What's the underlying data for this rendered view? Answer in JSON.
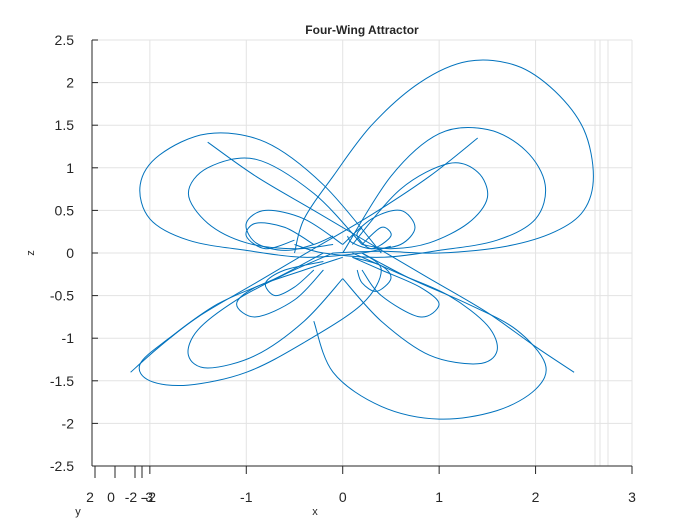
{
  "chart_data": {
    "type": "line",
    "title": "Four-Wing Attractor",
    "xlabel": "x",
    "ylabel": "y",
    "zlabel": "z",
    "x_ticks": [
      "-2",
      "-1",
      "0",
      "1",
      "2",
      "3"
    ],
    "y_ticks": [
      "2",
      "0",
      "-2",
      "-3"
    ],
    "z_ticks": [
      "2.5",
      "2",
      "1.5",
      "1",
      "0.5",
      "0",
      "-0.5",
      "-1",
      "-1.5",
      "-2",
      "-2.5"
    ],
    "xlim": [
      -2.6,
      3
    ],
    "zlim": [
      -2.5,
      2.5
    ],
    "grid": true,
    "series_color": "#0072BD",
    "series": [
      {
        "x": [
          -0.5,
          -0.4,
          -0.1,
          0.3,
          0.8,
          1.3,
          1.8,
          2.2,
          2.5,
          2.6,
          2.5,
          2.2,
          1.7,
          1.0,
          0.4,
          -0.1
        ],
        "z": [
          0.0,
          0.4,
          0.9,
          1.5,
          2.0,
          2.25,
          2.2,
          1.9,
          1.45,
          0.9,
          0.5,
          0.25,
          0.08,
          0.0,
          0.02,
          0.0
        ]
      },
      {
        "x": [
          0.0,
          0.5,
          1.0,
          1.5,
          1.9,
          2.1,
          2.0,
          1.6,
          1.0,
          0.4,
          -0.2,
          -0.5
        ],
        "z": [
          0.0,
          0.9,
          1.4,
          1.45,
          1.2,
          0.8,
          0.4,
          0.15,
          0.03,
          -0.05,
          0.0,
          0.1
        ]
      },
      {
        "x": [
          0.1,
          0.6,
          1.1,
          1.4,
          1.5,
          1.3,
          0.9,
          0.5,
          0.2
        ],
        "z": [
          0.1,
          0.75,
          1.05,
          0.95,
          0.65,
          0.35,
          0.12,
          0.05,
          0.1
        ]
      },
      {
        "x": [
          0.0,
          0.3,
          0.6,
          0.75,
          0.6,
          0.3,
          0.1,
          0.05
        ],
        "z": [
          0.1,
          0.4,
          0.5,
          0.3,
          0.1,
          0.05,
          0.12,
          0.2
        ]
      },
      {
        "x": [
          0.2,
          0.4,
          0.5,
          0.3,
          0.15,
          0.2
        ],
        "z": [
          0.1,
          0.3,
          0.2,
          0.05,
          0.2,
          0.3
        ]
      },
      {
        "x": [
          0.4,
          -0.2,
          -0.8,
          -1.4,
          -1.9,
          -2.1,
          -2.0,
          -1.6,
          -1.0,
          -0.4,
          0.2,
          0.5
        ],
        "z": [
          0.0,
          0.8,
          1.3,
          1.4,
          1.15,
          0.8,
          0.4,
          0.15,
          0.03,
          -0.05,
          0.0,
          0.08
        ]
      },
      {
        "x": [
          0.2,
          -0.3,
          -0.9,
          -1.4,
          -1.6,
          -1.4,
          -1.0,
          -0.5,
          -0.1
        ],
        "z": [
          0.1,
          0.7,
          1.1,
          1.0,
          0.7,
          0.35,
          0.12,
          0.05,
          0.1
        ]
      },
      {
        "x": [
          0.0,
          -0.4,
          -0.8,
          -1.0,
          -0.9,
          -0.6,
          -0.3,
          -0.1
        ],
        "z": [
          0.1,
          0.4,
          0.5,
          0.35,
          0.12,
          0.03,
          0.1,
          0.2
        ]
      },
      {
        "x": [
          -0.3,
          -0.6,
          -0.9,
          -1.0,
          -0.8,
          -0.5
        ],
        "z": [
          0.1,
          0.3,
          0.35,
          0.2,
          0.05,
          0.15
        ]
      },
      {
        "x": [
          -0.2,
          -0.7,
          -1.3,
          -1.8,
          -2.1,
          -2.0,
          -1.6,
          -1.0,
          -0.4,
          0.2,
          0.4,
          0.2
        ],
        "z": [
          0.0,
          -0.3,
          -0.6,
          -1.0,
          -1.3,
          -1.5,
          -1.55,
          -1.4,
          -1.05,
          -0.6,
          -0.2,
          0.0
        ]
      },
      {
        "x": [
          -0.1,
          -0.6,
          -1.1,
          -1.5,
          -1.6,
          -1.4,
          -0.9,
          -0.4,
          0.0
        ],
        "z": [
          0.0,
          -0.25,
          -0.55,
          -0.9,
          -1.2,
          -1.35,
          -1.2,
          -0.8,
          -0.3
        ]
      },
      {
        "x": [
          0.0,
          -0.4,
          -0.9,
          -1.1,
          -0.9,
          -0.5,
          -0.2
        ],
        "z": [
          -0.05,
          -0.2,
          -0.4,
          -0.6,
          -0.75,
          -0.55,
          -0.2
        ]
      },
      {
        "x": [
          -0.2,
          -0.6,
          -0.8,
          -0.7,
          -0.5,
          -0.3
        ],
        "z": [
          -0.1,
          -0.2,
          -0.35,
          -0.5,
          -0.4,
          -0.2
        ]
      },
      {
        "x": [
          0.2,
          0.7,
          1.3,
          1.8,
          2.1,
          2.0,
          1.6,
          1.0,
          0.4,
          -0.1,
          -0.3
        ],
        "z": [
          0.0,
          -0.3,
          -0.6,
          -0.9,
          -1.3,
          -1.6,
          -1.85,
          -1.95,
          -1.8,
          -1.4,
          -0.8
        ]
      },
      {
        "x": [
          0.1,
          0.6,
          1.1,
          1.5,
          1.6,
          1.4,
          0.9,
          0.4,
          0.0
        ],
        "z": [
          0.0,
          -0.25,
          -0.5,
          -0.85,
          -1.15,
          -1.3,
          -1.2,
          -0.8,
          -0.3
        ]
      },
      {
        "x": [
          0.1,
          0.4,
          0.8,
          1.0,
          0.8,
          0.4,
          0.2
        ],
        "z": [
          -0.05,
          -0.2,
          -0.4,
          -0.6,
          -0.75,
          -0.5,
          -0.2
        ]
      },
      {
        "x": [
          0.1,
          0.4,
          0.5,
          0.35,
          0.2,
          0.15
        ],
        "z": [
          -0.05,
          -0.15,
          -0.3,
          -0.45,
          -0.35,
          -0.2
        ]
      },
      {
        "x": [
          -1.4,
          -0.9,
          -0.3,
          0.3,
          0.9,
          1.5,
          2.0,
          2.4
        ],
        "z": [
          1.3,
          0.9,
          0.5,
          0.1,
          -0.3,
          -0.7,
          -1.1,
          -1.4
        ]
      },
      {
        "x": [
          1.4,
          0.9,
          0.3,
          -0.3,
          -0.9,
          -1.5,
          -1.9,
          -2.2
        ],
        "z": [
          1.35,
          0.9,
          0.45,
          0.05,
          -0.35,
          -0.75,
          -1.1,
          -1.4
        ]
      }
    ]
  }
}
